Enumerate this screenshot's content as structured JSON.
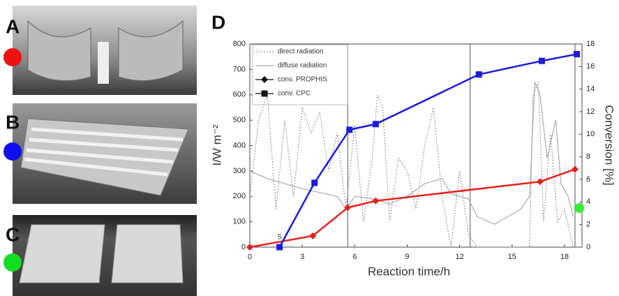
{
  "panels": {
    "A": "A",
    "B": "B",
    "C": "C"
  },
  "chart_data": {
    "type": "line",
    "panel_label": "D",
    "xlabel": "Reaction time/h",
    "ylabel": "I/W m⁻²",
    "y2label": "Conversion [%]",
    "xlim": [
      0,
      19
    ],
    "xticks": [
      0,
      3,
      6,
      9,
      12,
      15,
      18
    ],
    "ylim": [
      0,
      800
    ],
    "yticks": [
      0,
      100,
      200,
      300,
      400,
      500,
      600,
      700,
      800
    ],
    "y2lim": [
      0,
      18
    ],
    "y2ticks": [
      0,
      2,
      4,
      6,
      8,
      10,
      12,
      14,
      16,
      18
    ],
    "vlines": [
      5.6,
      12.6,
      18.6
    ],
    "annotation": {
      "text": "S",
      "x": 1.7
    },
    "series": [
      {
        "name": "direct radiation",
        "color": "#999999",
        "style": "dotted",
        "x": [
          0,
          0.5,
          1,
          1.5,
          2,
          2.5,
          3,
          3.5,
          4,
          4.5,
          5,
          5.5,
          6,
          6.5,
          7,
          7.3,
          7.6,
          8,
          8.5,
          9,
          9.5,
          10,
          10.5,
          11,
          11.5,
          12,
          12.5,
          13,
          16,
          16.2,
          16.5,
          16.8,
          17.2,
          17.6,
          18,
          18.5
        ],
        "values": [
          200,
          500,
          600,
          150,
          500,
          200,
          550,
          450,
          530,
          300,
          450,
          150,
          480,
          100,
          350,
          600,
          550,
          100,
          350,
          300,
          150,
          400,
          550,
          200,
          0,
          300,
          50,
          0,
          0,
          600,
          650,
          100,
          450,
          100,
          150,
          0
        ]
      },
      {
        "name": "diffuse radiation",
        "color": "#aaaaaa",
        "style": "solid",
        "x": [
          0,
          1,
          2,
          3,
          4,
          5,
          5.5,
          6,
          7,
          8,
          9,
          10,
          11,
          11.5,
          12,
          12.5,
          13,
          14,
          15,
          15.5,
          16,
          16.3,
          16.6,
          17,
          17.5,
          17.8,
          18.2,
          18.5
        ],
        "values": [
          300,
          270,
          250,
          230,
          215,
          200,
          150,
          200,
          190,
          170,
          200,
          250,
          270,
          210,
          200,
          190,
          120,
          90,
          130,
          150,
          200,
          650,
          600,
          350,
          500,
          250,
          200,
          120
        ]
      },
      {
        "name": "conv. PROPHIS",
        "color": "#e8201c",
        "style": "solid",
        "marker": "diamond",
        "axis": "y2",
        "x": [
          0,
          3.6,
          5.6,
          7.2,
          16.6,
          18.6
        ],
        "values": [
          0,
          1.0,
          3.5,
          4.1,
          5.8,
          6.9
        ]
      },
      {
        "name": "conv. CPC",
        "color": "#1a1ae0",
        "style": "solid",
        "marker": "square",
        "axis": "y2",
        "x": [
          1.7,
          3.7,
          5.7,
          7.2,
          13.1,
          16.7,
          18.7
        ],
        "values": [
          0,
          5.7,
          10.4,
          10.9,
          15.3,
          16.5,
          17.1
        ]
      }
    ]
  }
}
